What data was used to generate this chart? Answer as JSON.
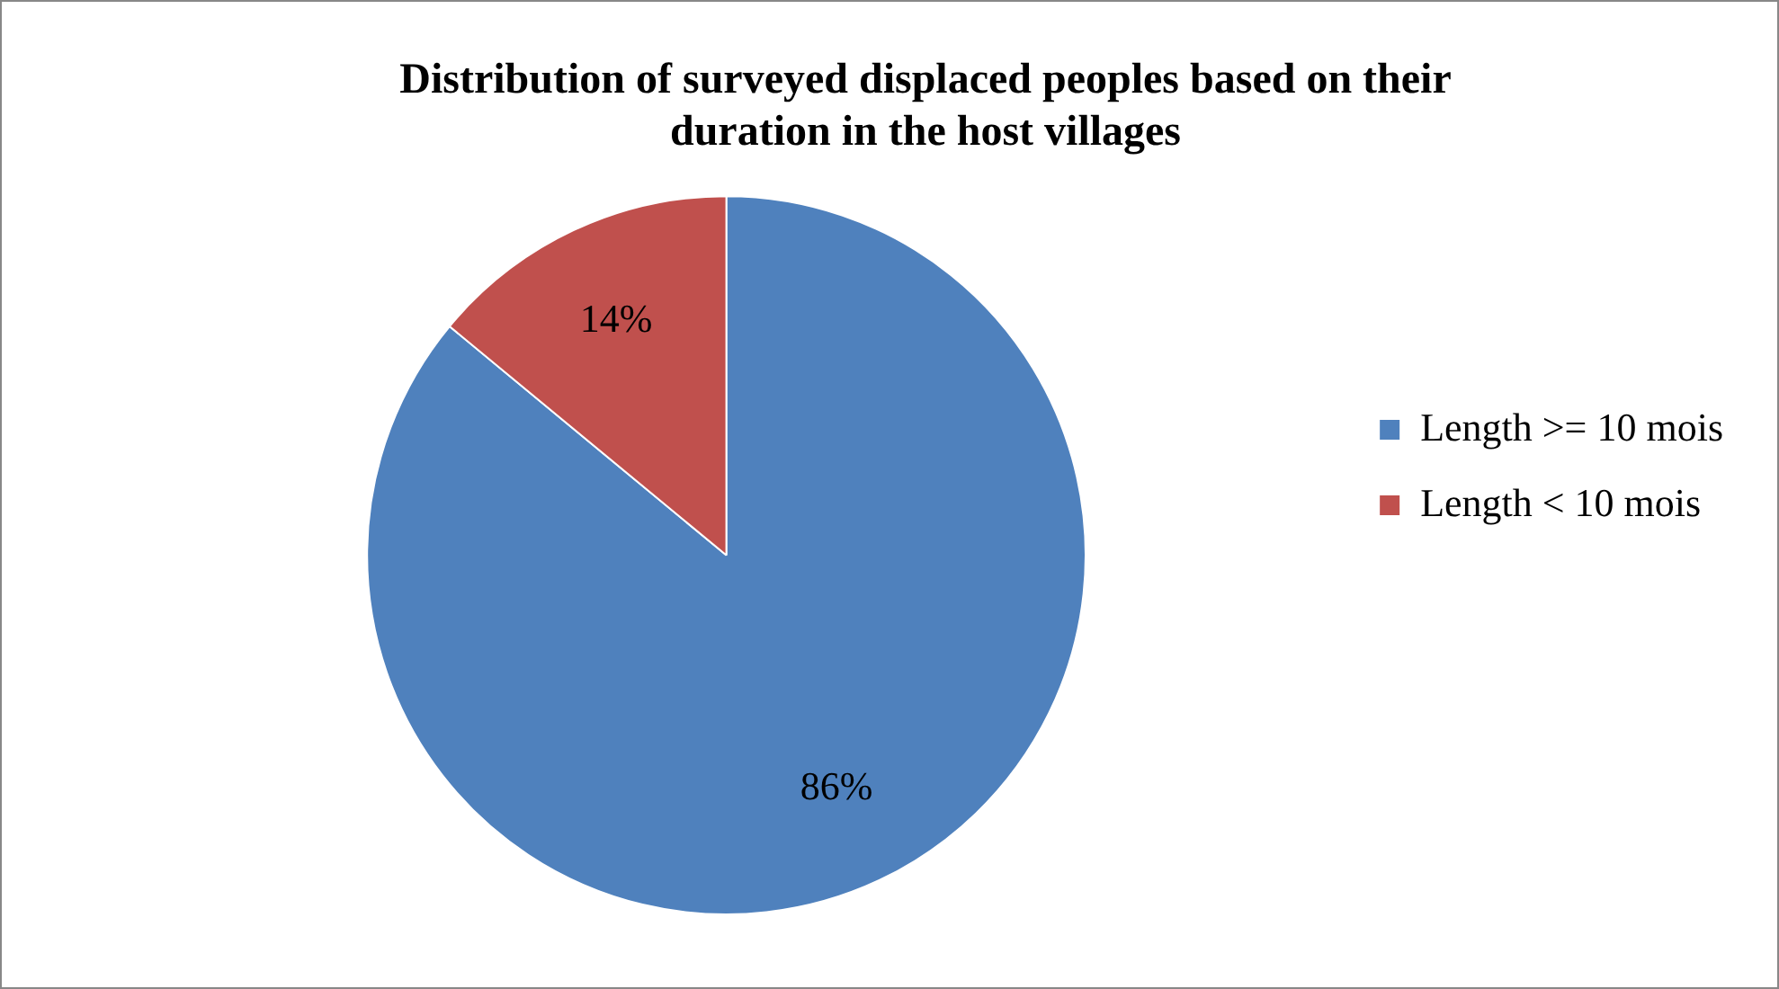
{
  "chart_data": {
    "type": "pie",
    "title": "Distribution of surveyed displaced peoples based on their duration in the host villages",
    "categories": [
      "Length >= 10 mois",
      "Length < 10 mois"
    ],
    "values": [
      86,
      14
    ],
    "colors": [
      "#4f81bd",
      "#c0504d"
    ],
    "value_labels": [
      "86%",
      "14%"
    ],
    "legend": "right"
  }
}
